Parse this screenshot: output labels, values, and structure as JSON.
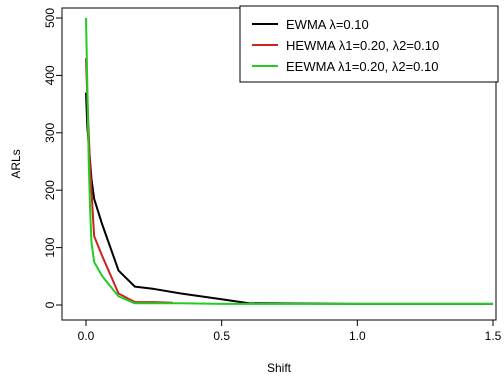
{
  "chart_data": {
    "type": "line",
    "xlabel": "Shift",
    "ylabel": "ARLs",
    "xlim": [
      0,
      1.5
    ],
    "ylim": [
      0,
      500
    ],
    "x_ticks": [
      0.0,
      0.5,
      1.0,
      1.5
    ],
    "x_tick_labels": [
      "0.0",
      "0.5",
      "1.0",
      "1.5"
    ],
    "y_ticks": [
      0,
      100,
      200,
      300,
      400,
      500
    ],
    "y_tick_labels": [
      "0",
      "100",
      "200",
      "300",
      "400",
      "500"
    ],
    "grid": false,
    "legend_position": "top-right",
    "series": [
      {
        "name": "EWMA λ=0.10",
        "color": "#000000",
        "x": [
          0.0,
          0.005,
          0.01,
          0.015,
          0.02,
          0.03,
          0.06,
          0.12,
          0.18,
          0.25,
          0.35,
          0.5,
          0.6,
          1.0,
          1.5
        ],
        "y": [
          370,
          310,
          280,
          250,
          220,
          185,
          140,
          60,
          32,
          28,
          20,
          10,
          3,
          2,
          2
        ]
      },
      {
        "name": "HEWMA λ1=0.20, λ2=0.10",
        "color": "#cc2222",
        "x": [
          0.0,
          0.005,
          0.01,
          0.015,
          0.02,
          0.03,
          0.06,
          0.12,
          0.18,
          0.25,
          0.32
        ],
        "y": [
          430,
          360,
          300,
          240,
          200,
          120,
          85,
          20,
          5,
          5,
          4
        ]
      },
      {
        "name": "EEWMA λ1=0.20, λ2=0.10",
        "color": "#22cc22",
        "x": [
          0.0,
          0.005,
          0.01,
          0.015,
          0.02,
          0.03,
          0.06,
          0.12,
          0.18,
          0.25,
          0.35,
          0.5,
          0.6,
          1.0,
          1.5
        ],
        "y": [
          500,
          380,
          250,
          170,
          110,
          75,
          50,
          15,
          3,
          3,
          3,
          2,
          2,
          2,
          2
        ]
      }
    ]
  }
}
